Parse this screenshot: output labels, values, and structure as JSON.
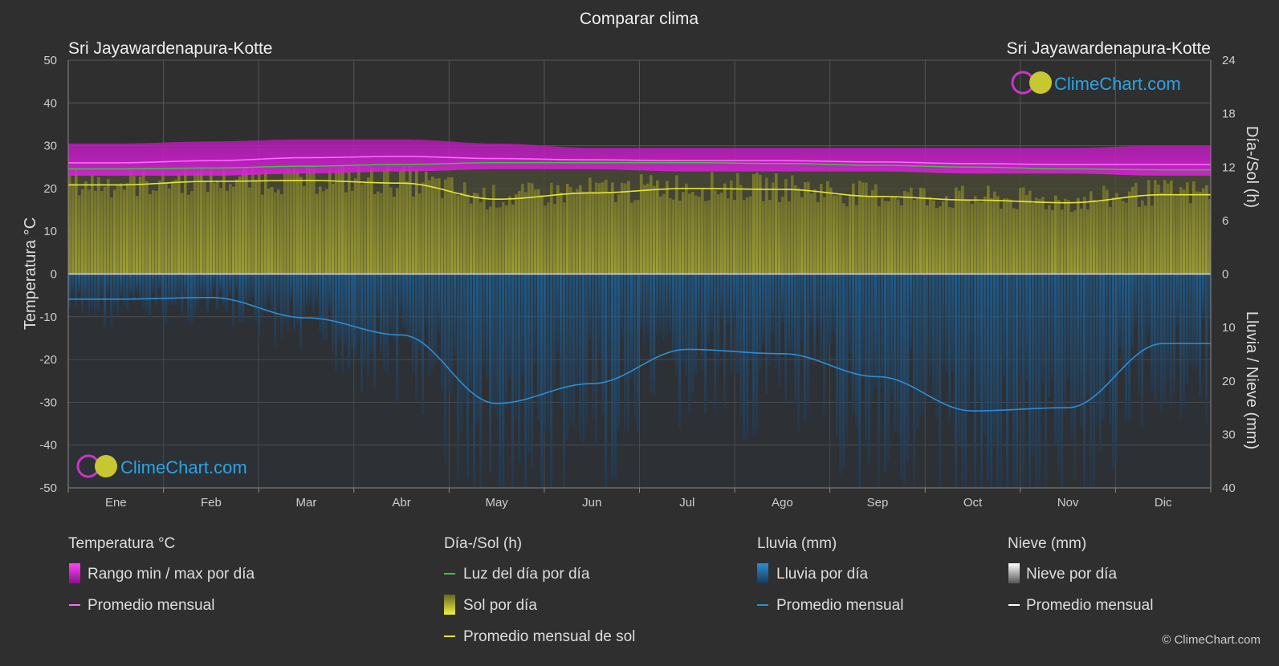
{
  "chart_data": {
    "type": "area",
    "title": "Comparar clima",
    "location_left": "Sri Jayawardenapura-Kotte",
    "location_right": "Sri Jayawardenapura-Kotte",
    "months": [
      "Ene",
      "Feb",
      "Mar",
      "Abr",
      "May",
      "Jun",
      "Jul",
      "Ago",
      "Sep",
      "Oct",
      "Nov",
      "Dic"
    ],
    "axes": {
      "left": {
        "label": "Temperatura °C",
        "min": -50,
        "max": 50,
        "ticks": [
          50,
          40,
          30,
          20,
          10,
          0,
          -10,
          -20,
          -30,
          -40,
          -50
        ]
      },
      "right_top": {
        "label": "Día-/Sol (h)",
        "min": 0,
        "max": 24,
        "ticks": [
          24,
          18,
          12,
          6,
          0
        ]
      },
      "right_bottom": {
        "label": "Lluvia / Nieve (mm)",
        "min": 0,
        "max": 40,
        "ticks": [
          10,
          20,
          30,
          40
        ]
      }
    },
    "series": {
      "temp_max_daily": [
        30.5,
        31.0,
        31.5,
        31.5,
        30.5,
        29.5,
        29.5,
        29.5,
        29.5,
        29.5,
        29.5,
        30.0
      ],
      "temp_min_daily": [
        23.0,
        23.0,
        23.5,
        24.0,
        24.5,
        24.5,
        24.0,
        24.0,
        24.0,
        23.5,
        23.5,
        23.0
      ],
      "temp_monthly_avg": [
        26.0,
        26.5,
        27.2,
        27.5,
        27.0,
        26.7,
        26.5,
        26.5,
        26.2,
        25.8,
        25.6,
        25.6
      ],
      "daylight_hours": [
        11.8,
        11.9,
        12.1,
        12.3,
        12.5,
        12.5,
        12.5,
        12.4,
        12.2,
        12.0,
        11.8,
        11.7
      ],
      "sunshine_hours_avg": [
        10.0,
        10.4,
        10.5,
        10.2,
        8.4,
        9.1,
        9.6,
        9.5,
        8.7,
        8.3,
        8.0,
        8.9
      ],
      "rain_monthly_avg_mm": [
        4.7,
        4.4,
        8.2,
        11.4,
        24.2,
        20.5,
        14.1,
        14.9,
        19.2,
        25.6,
        25.0,
        13.0
      ]
    },
    "legend": {
      "groups": [
        {
          "title": "Temperatura °C",
          "items": [
            "Rango min / max por día",
            "Promedio mensual"
          ]
        },
        {
          "title": "Día-/Sol (h)",
          "items": [
            "Luz del día por día",
            "Sol por día",
            "Promedio mensual de sol"
          ]
        },
        {
          "title": "Lluvia (mm)",
          "items": [
            "Lluvia por día",
            "Promedio mensual"
          ]
        },
        {
          "title": "Nieve (mm)",
          "items": [
            "Nieve por día",
            "Promedio mensual"
          ]
        }
      ]
    },
    "colors": {
      "temp_range": "#d21fd2",
      "temp_avg": "#ff66ff",
      "daylight": "#33cc33",
      "sun_fill": "#9b9b2a",
      "sun_avg": "#e6e633",
      "rain_fill": "#1a6aa8",
      "rain_avg": "#2b8fd6",
      "snow": "#ffffff"
    },
    "watermark": "ClimeChart.com",
    "copyright": "© ClimeChart.com"
  }
}
